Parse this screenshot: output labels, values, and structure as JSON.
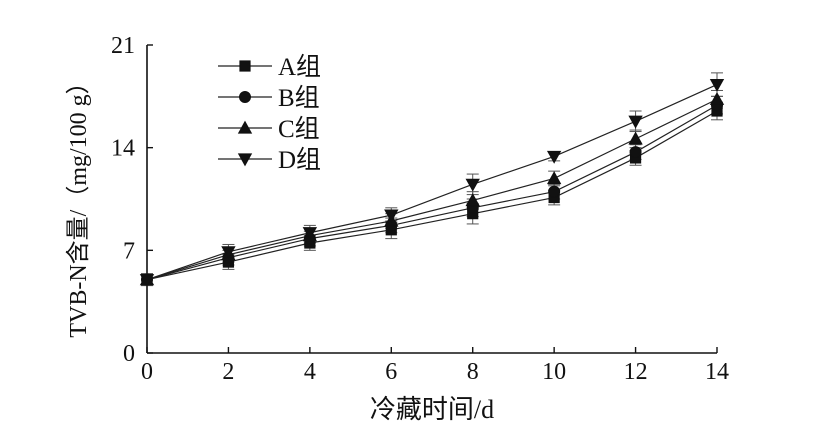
{
  "chart_data": {
    "type": "line",
    "title": "",
    "xlabel": "冷藏时间/d",
    "ylabel": "TVB-N含量/（mg/100 g）",
    "x": [
      0,
      2,
      4,
      6,
      8,
      10,
      12,
      14
    ],
    "xlim": [
      0,
      14
    ],
    "ylim": [
      0,
      21
    ],
    "xticks": [
      0,
      2,
      4,
      6,
      8,
      10,
      12,
      14
    ],
    "yticks": [
      0,
      7,
      14,
      21
    ],
    "grid": false,
    "legend_position": "top-left",
    "series": [
      {
        "name": "A组",
        "marker": "square",
        "values": [
          5.0,
          6.2,
          7.5,
          8.4,
          9.5,
          10.6,
          13.3,
          16.5
        ],
        "errors": [
          0.4,
          0.5,
          0.5,
          0.6,
          0.7,
          0.5,
          0.5,
          0.6
        ]
      },
      {
        "name": "B组",
        "marker": "circle",
        "values": [
          5.0,
          6.5,
          7.8,
          8.7,
          9.9,
          11.0,
          13.7,
          16.9
        ],
        "errors": [
          0.4,
          0.5,
          0.5,
          0.5,
          0.6,
          0.5,
          0.5,
          0.6
        ]
      },
      {
        "name": "C组",
        "marker": "triangle-up",
        "values": [
          5.0,
          6.7,
          8.0,
          9.0,
          10.4,
          11.9,
          14.6,
          17.3
        ],
        "errors": [
          0.4,
          0.5,
          0.5,
          0.5,
          0.6,
          0.5,
          0.6,
          0.6
        ]
      },
      {
        "name": "D组",
        "marker": "triangle-down",
        "values": [
          5.0,
          6.9,
          8.2,
          9.4,
          11.5,
          13.4,
          15.8,
          18.3
        ],
        "errors": [
          0.4,
          0.5,
          0.5,
          0.5,
          0.7,
          0.3,
          0.7,
          0.8
        ]
      }
    ]
  }
}
